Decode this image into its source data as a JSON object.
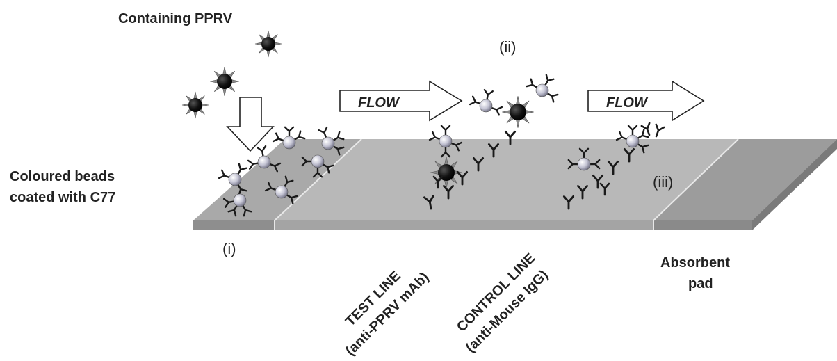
{
  "labels": {
    "top_sample": "Containing PPRV",
    "beads_line1": "Coloured beads",
    "beads_line2": "coated with C77",
    "flow_arrow_1": "FLOW",
    "flow_arrow_2": "FLOW",
    "step_i": "(i)",
    "step_ii": "(ii)",
    "step_iii": "(iii)",
    "test_line_1": "TEST LINE",
    "test_line_2": "(anti-PPRV mAb)",
    "control_line_1": "CONTROL LINE",
    "control_line_2": "(anti-Mouse IgG)",
    "pad_line1": "Absorbent",
    "pad_line2": "pad"
  },
  "colors": {
    "strip_top": "#b7b7b7",
    "strip_edge": "#8f8f8f",
    "pad_top": "#9a9a9a",
    "sample_pad_top": "#a8a8a8",
    "virus": "#111111",
    "bead": "#b9b9c9",
    "antibody": "#1a1a1a"
  },
  "icons": {
    "virus": "spiky-virus-icon",
    "bead": "antibody-coated-bead-icon",
    "antibody": "y-shaped-antibody-icon",
    "flow": "hollow-right-arrow-icon",
    "down": "hollow-down-arrow-icon"
  }
}
